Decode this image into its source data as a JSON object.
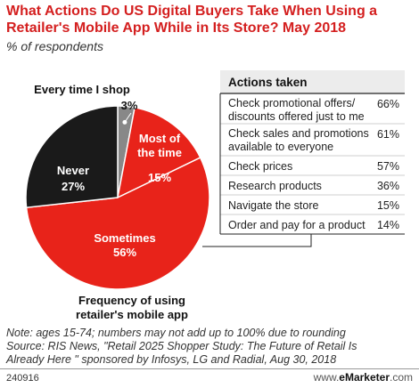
{
  "title": "What Actions Do US Digital Buyers Take When Using a Retailer's Mobile App While in Its Store? May 2018",
  "subtitle": "% of respondents",
  "colors": {
    "accent": "#d41f1f",
    "pie_red": "#e8231a",
    "pie_black": "#1a1a1a",
    "pie_gray": "#888888"
  },
  "chart_data": [
    {
      "type": "pie",
      "title": "Frequency of using retailer's mobile app",
      "slices": [
        {
          "label": "Every time I shop",
          "value": 3,
          "display": "3%",
          "color": "#888888"
        },
        {
          "label": "Most of the time",
          "value": 15,
          "display": "15%",
          "color": "#e8231a"
        },
        {
          "label": "Sometimes",
          "value": 56,
          "display": "56%",
          "color": "#e8231a"
        },
        {
          "label": "Never",
          "value": 27,
          "display": "27%",
          "color": "#1a1a1a"
        }
      ]
    },
    {
      "type": "table",
      "title": "Actions taken",
      "rows": [
        {
          "label": "Check promotional offers/ discounts offered just to me",
          "value": 66,
          "display": "66%"
        },
        {
          "label": "Check sales and promotions available to everyone",
          "value": 61,
          "display": "61%"
        },
        {
          "label": "Check prices",
          "value": 57,
          "display": "57%"
        },
        {
          "label": "Research products",
          "value": 36,
          "display": "36%"
        },
        {
          "label": "Navigate the store",
          "value": 15,
          "display": "15%"
        },
        {
          "label": "Order and pay for a product",
          "value": 14,
          "display": "14%"
        }
      ]
    }
  ],
  "notes": {
    "line1": "Note: ages 15-74; numbers may not add up to 100% due to rounding",
    "line2": "Source: RIS News, \"Retail 2025 Shopper Study: The Future of Retail Is",
    "line3": "Already Here \" sponsored by Infosys, LG and Radial, Aug 30, 2018"
  },
  "footer": {
    "id": "240916",
    "brand_prefix": "www.",
    "brand_name": "eMarketer",
    "brand_suffix": ".com"
  }
}
